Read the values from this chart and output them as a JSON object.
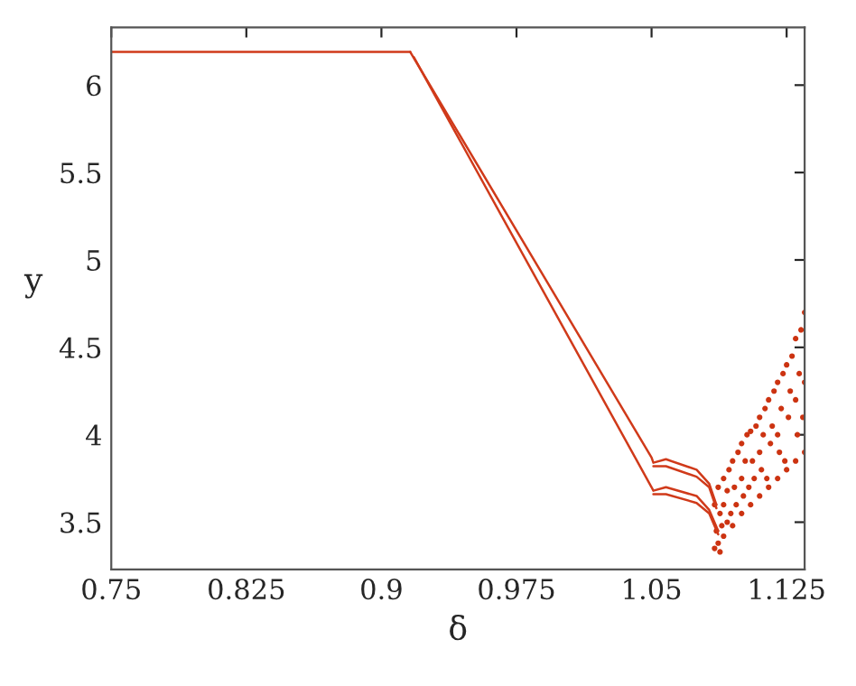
{
  "chart_data": {
    "type": "scatter",
    "xlabel": "δ",
    "ylabel": "y",
    "xlim": [
      0.75,
      1.135
    ],
    "ylim": [
      3.23,
      6.33
    ],
    "xticks": [
      0.75,
      0.825,
      0.9,
      0.975,
      1.05,
      1.125
    ],
    "yticks": [
      3.5,
      4,
      4.5,
      5,
      5.5,
      6
    ],
    "grid": false,
    "legend": false,
    "series": [
      {
        "type": "line",
        "marker": "none",
        "color": "#d03a1a",
        "x": [
          0.75,
          0.916
        ],
        "values": [
          6.19,
          6.19
        ]
      },
      {
        "type": "line",
        "marker": "none",
        "color": "#d03a1a",
        "x": [
          0.916,
          1.05,
          1.051,
          1.058,
          1.075,
          1.082,
          1.086
        ],
        "values": [
          6.19,
          3.87,
          3.84,
          3.86,
          3.8,
          3.72,
          3.6
        ]
      },
      {
        "type": "line",
        "marker": "none",
        "color": "#d03a1a",
        "x": [
          0.918,
          1.05,
          1.051,
          1.058,
          1.075,
          1.082,
          1.087
        ],
        "values": [
          6.16,
          3.7,
          3.68,
          3.7,
          3.65,
          3.57,
          3.45
        ]
      },
      {
        "type": "line",
        "marker": "none",
        "color": "#d03a1a",
        "x": [
          1.051,
          1.058,
          1.075,
          1.082,
          1.086
        ],
        "values": [
          3.82,
          3.82,
          3.76,
          3.7,
          3.58
        ]
      },
      {
        "type": "line",
        "marker": "none",
        "color": "#d03a1a",
        "x": [
          1.051,
          1.058,
          1.075,
          1.082,
          1.087
        ],
        "values": [
          3.66,
          3.66,
          3.61,
          3.55,
          3.43
        ]
      },
      {
        "marker": "circle",
        "color": "#cc3311",
        "x": [
          1.085,
          1.085,
          1.086,
          1.087,
          1.087,
          1.088,
          1.088,
          1.089,
          1.09,
          1.09,
          1.09,
          1.092,
          1.092,
          1.093,
          1.094,
          1.095,
          1.095,
          1.096,
          1.097,
          1.098,
          1.1,
          1.1,
          1.1,
          1.101,
          1.102,
          1.103,
          1.104,
          1.105,
          1.105,
          1.106,
          1.107,
          1.108,
          1.11,
          1.11,
          1.11,
          1.111,
          1.112,
          1.113,
          1.114,
          1.115,
          1.115,
          1.116,
          1.117,
          1.118,
          1.12,
          1.12,
          1.12,
          1.121,
          1.122,
          1.123,
          1.124,
          1.125,
          1.125,
          1.126,
          1.127,
          1.128,
          1.13,
          1.13,
          1.13,
          1.131,
          1.132,
          1.133,
          1.134,
          1.135,
          1.135,
          1.135
        ],
        "values": [
          3.35,
          3.6,
          3.45,
          3.38,
          3.7,
          3.33,
          3.55,
          3.48,
          3.42,
          3.6,
          3.75,
          3.5,
          3.68,
          3.8,
          3.55,
          3.48,
          3.85,
          3.7,
          3.6,
          3.9,
          3.55,
          3.75,
          3.95,
          3.65,
          3.85,
          4.0,
          3.7,
          3.6,
          4.02,
          3.85,
          3.75,
          4.05,
          3.65,
          3.9,
          4.1,
          3.8,
          4.0,
          4.15,
          3.75,
          3.7,
          4.2,
          3.95,
          4.05,
          4.25,
          3.75,
          4.0,
          4.3,
          3.9,
          4.15,
          4.35,
          3.85,
          3.8,
          4.4,
          4.1,
          4.25,
          4.45,
          3.85,
          4.2,
          4.55,
          4.0,
          4.35,
          4.6,
          4.1,
          3.9,
          4.3,
          4.7
        ]
      }
    ]
  }
}
